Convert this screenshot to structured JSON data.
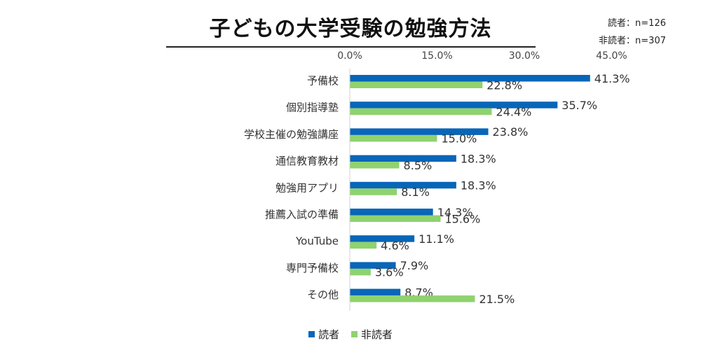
{
  "title": "子どもの大学受験の勉強方法",
  "sample_sizes": {
    "readers": "読者：n=126",
    "nonreaders": "非読者：n=307"
  },
  "colors": {
    "readers": "#0866b8",
    "nonreaders": "#8fd26e"
  },
  "chart_data": {
    "type": "bar",
    "orientation": "horizontal",
    "title": "子どもの大学受験の勉強方法",
    "categories": [
      "予備校",
      "個別指導塾",
      "学校主催の勉強講座",
      "通信教育教材",
      "勉強用アプリ",
      "推薦入試の準備",
      "YouTube",
      "専門予備校",
      "その他"
    ],
    "series": [
      {
        "name": "読者",
        "color": "#0866b8",
        "values": [
          41.3,
          35.7,
          23.8,
          18.3,
          18.3,
          14.3,
          11.1,
          7.9,
          8.7
        ],
        "labels": [
          "41.3%",
          "35.7%",
          "23.8%",
          "18.3%",
          "18.3%",
          "14.3%",
          "11.1%",
          "7.9%",
          "8.7%"
        ]
      },
      {
        "name": "非読者",
        "color": "#8fd26e",
        "values": [
          22.8,
          24.4,
          15.0,
          8.5,
          8.1,
          15.6,
          4.6,
          3.6,
          21.5
        ],
        "labels": [
          "22.8%",
          "24.4%",
          "15.0%",
          "8.5%",
          "8.1%",
          "15.6%",
          "4.6%",
          "3.6%",
          "21.5%"
        ]
      }
    ],
    "xticks": [
      0,
      15,
      30,
      45
    ],
    "xtick_labels": [
      "0.0%",
      "15.0%",
      "30.0%",
      "45.0%"
    ],
    "xlim": [
      0,
      50
    ],
    "xaxis_position": "top",
    "grid": false,
    "legend_position": "bottom"
  }
}
